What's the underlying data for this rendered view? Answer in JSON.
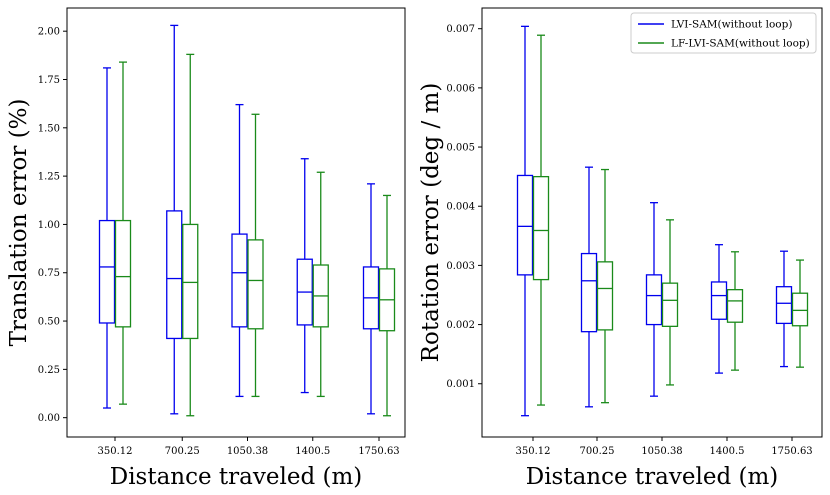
{
  "chart_data": [
    {
      "type": "boxplot",
      "xlabel": "Distance traveled (m)",
      "ylabel": "Translation error (%)",
      "ylim": [
        -0.1,
        2.12
      ],
      "yticks": [
        "0.00",
        "0.25",
        "0.50",
        "0.75",
        "1.00",
        "1.25",
        "1.50",
        "1.75",
        "2.00"
      ],
      "categories": [
        "350.12",
        "700.25",
        "1050.38",
        "1400.5",
        "1750.63"
      ],
      "legend": false,
      "series": [
        {
          "name": "LVI-SAM(without loop)",
          "color": "#0000ee",
          "boxes": [
            {
              "min": 0.05,
              "q1": 0.49,
              "median": 0.78,
              "q3": 1.02,
              "max": 1.81
            },
            {
              "min": 0.02,
              "q1": 0.41,
              "median": 0.72,
              "q3": 1.07,
              "max": 2.03
            },
            {
              "min": 0.11,
              "q1": 0.47,
              "median": 0.75,
              "q3": 0.95,
              "max": 1.62
            },
            {
              "min": 0.13,
              "q1": 0.48,
              "median": 0.65,
              "q3": 0.82,
              "max": 1.34
            },
            {
              "min": 0.02,
              "q1": 0.46,
              "median": 0.62,
              "q3": 0.78,
              "max": 1.21
            }
          ]
        },
        {
          "name": "LF-LVI-SAM(without loop)",
          "color": "#1a8a1a",
          "boxes": [
            {
              "min": 0.07,
              "q1": 0.47,
              "median": 0.73,
              "q3": 1.02,
              "max": 1.84
            },
            {
              "min": 0.01,
              "q1": 0.41,
              "median": 0.7,
              "q3": 1.0,
              "max": 1.88
            },
            {
              "min": 0.11,
              "q1": 0.46,
              "median": 0.71,
              "q3": 0.92,
              "max": 1.57
            },
            {
              "min": 0.11,
              "q1": 0.47,
              "median": 0.63,
              "q3": 0.79,
              "max": 1.27
            },
            {
              "min": 0.01,
              "q1": 0.45,
              "median": 0.61,
              "q3": 0.77,
              "max": 1.15
            }
          ]
        }
      ]
    },
    {
      "type": "boxplot",
      "xlabel": "Distance traveled (m)",
      "ylabel": "Rotation error (deg / m)",
      "ylim": [
        0.0001,
        0.00735
      ],
      "yticks": [
        "0.001",
        "0.002",
        "0.003",
        "0.004",
        "0.005",
        "0.006",
        "0.007"
      ],
      "categories": [
        "350.12",
        "700.25",
        "1050.38",
        "1400.5",
        "1750.63"
      ],
      "legend": true,
      "legend_position": "top-right",
      "series": [
        {
          "name": "LVI-SAM(without loop)",
          "color": "#0000ee",
          "boxes": [
            {
              "min": 0.00046,
              "q1": 0.00284,
              "median": 0.00366,
              "q3": 0.00452,
              "max": 0.00704
            },
            {
              "min": 0.00061,
              "q1": 0.00188,
              "median": 0.00274,
              "q3": 0.0032,
              "max": 0.00466
            },
            {
              "min": 0.00079,
              "q1": 0.002,
              "median": 0.00249,
              "q3": 0.00284,
              "max": 0.00406
            },
            {
              "min": 0.00118,
              "q1": 0.00209,
              "median": 0.00249,
              "q3": 0.00272,
              "max": 0.00335
            },
            {
              "min": 0.00129,
              "q1": 0.00202,
              "median": 0.00236,
              "q3": 0.00264,
              "max": 0.00324
            }
          ]
        },
        {
          "name": "LF-LVI-SAM(without loop)",
          "color": "#1a8a1a",
          "boxes": [
            {
              "min": 0.00064,
              "q1": 0.00276,
              "median": 0.00359,
              "q3": 0.0045,
              "max": 0.00689
            },
            {
              "min": 0.00068,
              "q1": 0.00191,
              "median": 0.00261,
              "q3": 0.00306,
              "max": 0.00462
            },
            {
              "min": 0.00098,
              "q1": 0.00197,
              "median": 0.00241,
              "q3": 0.0027,
              "max": 0.00377
            },
            {
              "min": 0.00123,
              "q1": 0.00204,
              "median": 0.0024,
              "q3": 0.00259,
              "max": 0.00323
            },
            {
              "min": 0.00128,
              "q1": 0.00198,
              "median": 0.00224,
              "q3": 0.00253,
              "max": 0.00309
            }
          ]
        }
      ]
    }
  ]
}
